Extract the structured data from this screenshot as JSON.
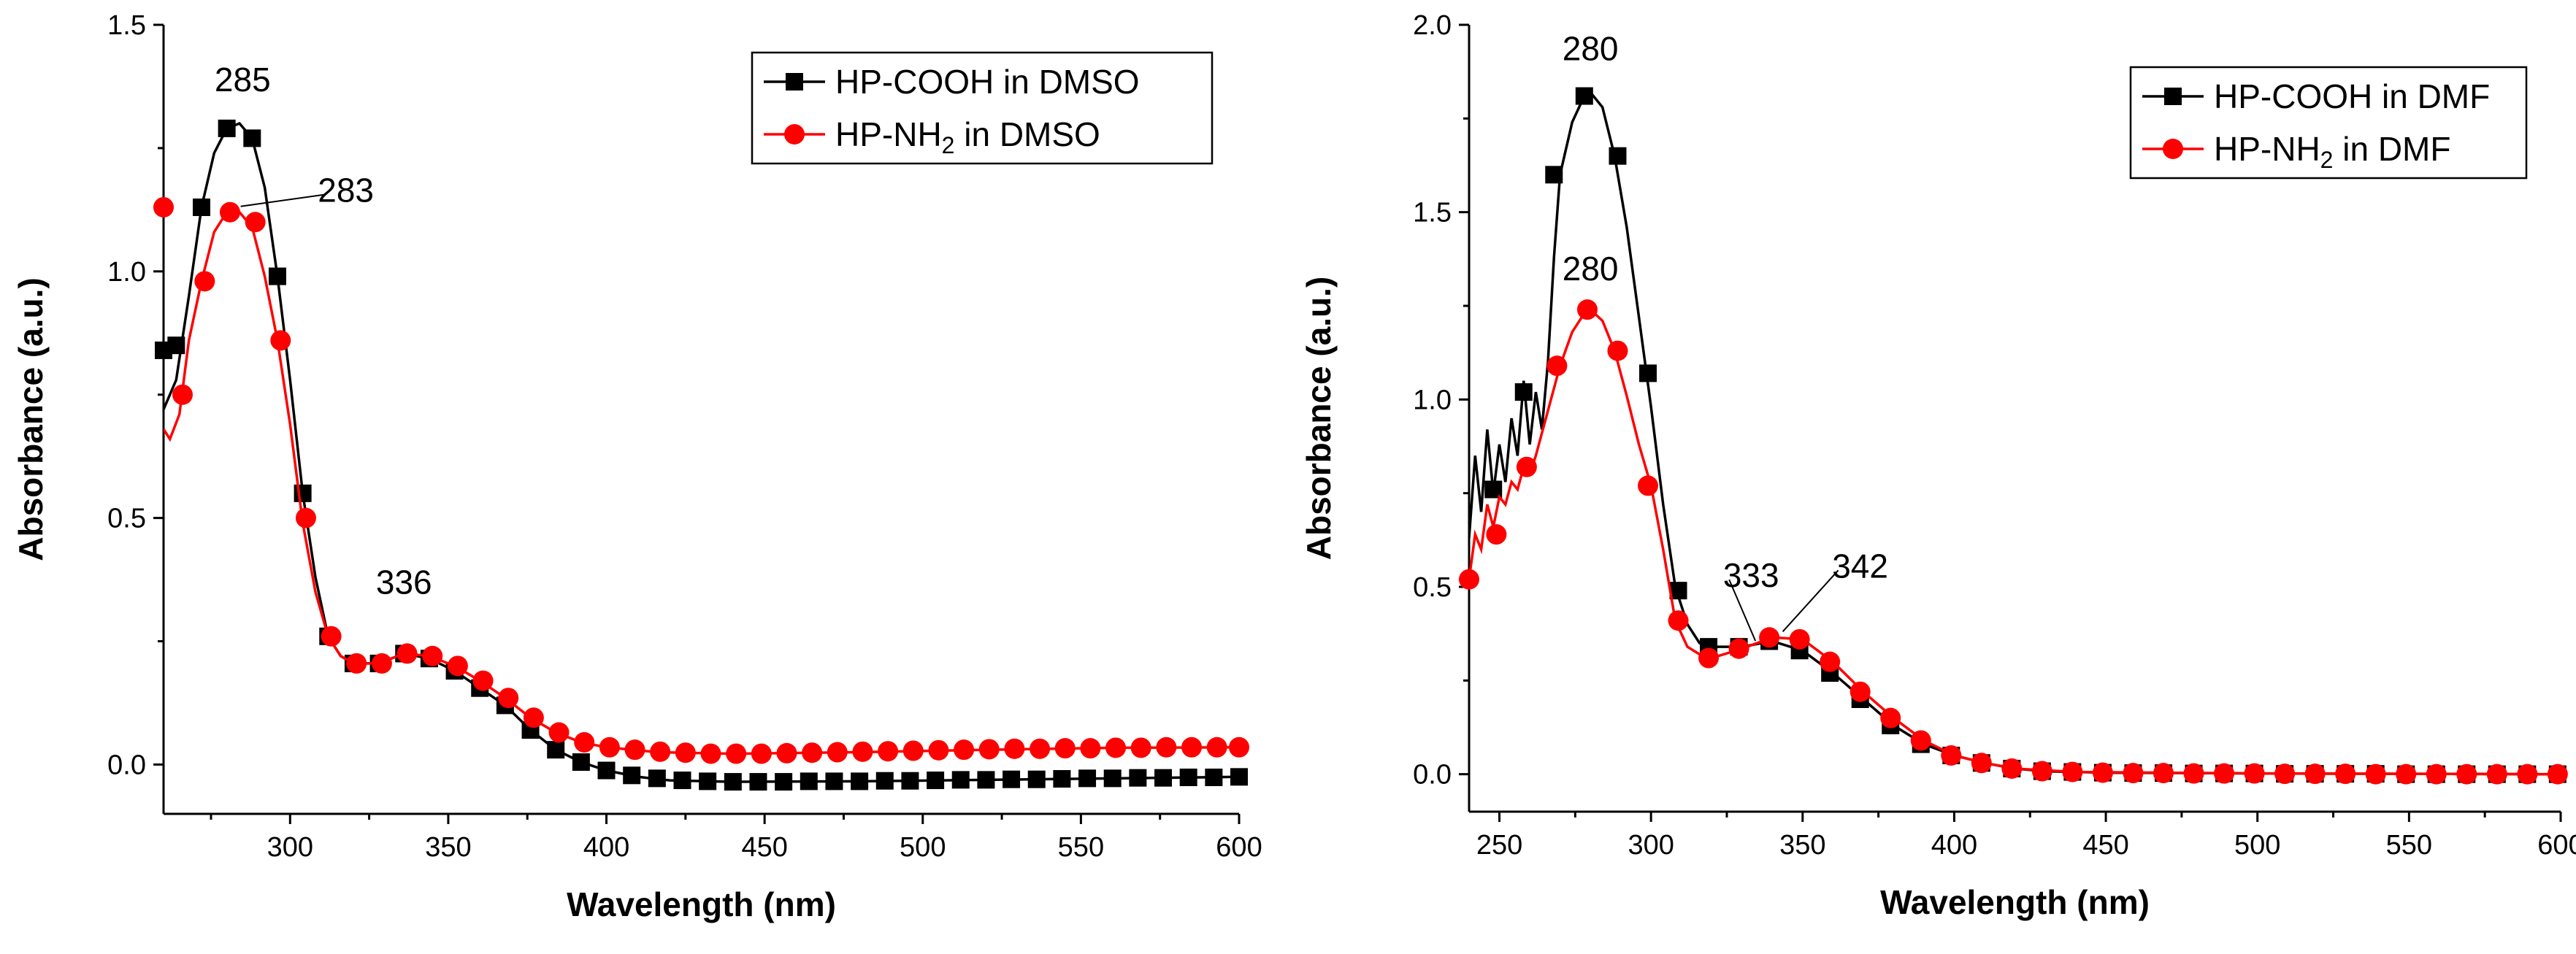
{
  "chart_data": [
    {
      "type": "line",
      "title": "",
      "xlabel": "Wavelength (nm)",
      "ylabel": "Absorbance (a.u.)",
      "xlim": [
        260,
        600
      ],
      "ylim": [
        -0.1,
        1.5
      ],
      "xticks": [
        300,
        350,
        400,
        450,
        500,
        550,
        600
      ],
      "yticks": [
        0.0,
        0.5,
        1.0,
        1.5
      ],
      "xtick_labels": [
        "300",
        "350",
        "400",
        "450",
        "500",
        "550",
        "600"
      ],
      "ytick_labels": [
        "0.0",
        "0.5",
        "1.0",
        "1.5"
      ],
      "legend_position": "top-right",
      "series": [
        {
          "name": "HP-COOH in DMSO",
          "name_main": "HP-COOH in DMSO",
          "name_sub": "",
          "name_tail": "",
          "color": "#000000",
          "marker": "square",
          "curve": [
            [
              260,
              0.72
            ],
            [
              264,
              0.78
            ],
            [
              268,
              0.95
            ],
            [
              272,
              1.13
            ],
            [
              276,
              1.24
            ],
            [
              280,
              1.29
            ],
            [
              284,
              1.3
            ],
            [
              288,
              1.27
            ],
            [
              292,
              1.17
            ],
            [
              296,
              0.99
            ],
            [
              300,
              0.78
            ],
            [
              304,
              0.55
            ],
            [
              308,
              0.38
            ],
            [
              312,
              0.26
            ],
            [
              316,
              0.22
            ],
            [
              320,
              0.205
            ],
            [
              328,
              0.205
            ],
            [
              336,
              0.225
            ],
            [
              344,
              0.215
            ],
            [
              352,
              0.19
            ],
            [
              360,
              0.155
            ],
            [
              368,
              0.12
            ],
            [
              376,
              0.07
            ],
            [
              384,
              0.03
            ],
            [
              392,
              0.005
            ],
            [
              400,
              -0.012
            ],
            [
              410,
              -0.025
            ],
            [
              420,
              -0.032
            ],
            [
              440,
              -0.035
            ],
            [
              480,
              -0.034
            ],
            [
              520,
              -0.031
            ],
            [
              560,
              -0.028
            ],
            [
              600,
              -0.025
            ]
          ],
          "x": [
            260,
            264,
            272,
            280,
            288,
            296,
            304,
            312,
            320,
            328,
            336,
            344,
            352,
            360,
            368,
            376,
            384,
            392,
            400,
            408,
            416,
            424,
            432,
            440,
            448,
            456,
            464,
            472,
            480,
            488,
            496,
            504,
            512,
            520,
            528,
            536,
            544,
            552,
            560,
            568,
            576,
            584,
            592,
            600
          ],
          "y": [
            0.84,
            0.85,
            1.13,
            1.29,
            1.27,
            0.99,
            0.55,
            0.26,
            0.205,
            0.205,
            0.225,
            0.215,
            0.19,
            0.155,
            0.12,
            0.07,
            0.03,
            0.005,
            -0.012,
            -0.022,
            -0.028,
            -0.032,
            -0.034,
            -0.035,
            -0.035,
            -0.035,
            -0.034,
            -0.034,
            -0.034,
            -0.033,
            -0.033,
            -0.032,
            -0.031,
            -0.031,
            -0.03,
            -0.03,
            -0.029,
            -0.028,
            -0.028,
            -0.027,
            -0.027,
            -0.026,
            -0.026,
            -0.025
          ]
        },
        {
          "name": "HP-NH2 in DMSO",
          "name_main": "HP-NH",
          "name_sub": "2",
          "name_tail": " in DMSO",
          "color": "#ff0000",
          "marker": "circle",
          "curve": [
            [
              260,
              0.68
            ],
            [
              262,
              0.66
            ],
            [
              265,
              0.71
            ],
            [
              268,
              0.86
            ],
            [
              272,
              0.98
            ],
            [
              276,
              1.08
            ],
            [
              280,
              1.12
            ],
            [
              284,
              1.12
            ],
            [
              288,
              1.09
            ],
            [
              292,
              0.99
            ],
            [
              296,
              0.86
            ],
            [
              300,
              0.69
            ],
            [
              304,
              0.49
            ],
            [
              308,
              0.35
            ],
            [
              312,
              0.26
            ],
            [
              316,
              0.22
            ],
            [
              320,
              0.205
            ],
            [
              328,
              0.205
            ],
            [
              336,
              0.225
            ],
            [
              344,
              0.22
            ],
            [
              352,
              0.2
            ],
            [
              360,
              0.17
            ],
            [
              368,
              0.135
            ],
            [
              376,
              0.095
            ],
            [
              384,
              0.065
            ],
            [
              392,
              0.045
            ],
            [
              400,
              0.035
            ],
            [
              416,
              0.025
            ],
            [
              440,
              0.022
            ],
            [
              480,
              0.025
            ],
            [
              520,
              0.03
            ],
            [
              560,
              0.034
            ],
            [
              600,
              0.035
            ]
          ],
          "x": [
            260,
            266,
            273,
            281,
            289,
            297,
            305,
            313,
            321,
            329,
            337,
            345,
            353,
            361,
            369,
            377,
            385,
            393,
            401,
            409,
            417,
            425,
            433,
            441,
            449,
            457,
            465,
            473,
            481,
            489,
            497,
            505,
            513,
            521,
            529,
            537,
            545,
            553,
            561,
            569,
            577,
            585,
            593,
            600
          ],
          "y": [
            1.13,
            0.75,
            0.98,
            1.12,
            1.1,
            0.86,
            0.5,
            0.26,
            0.205,
            0.205,
            0.225,
            0.22,
            0.2,
            0.17,
            0.135,
            0.095,
            0.065,
            0.045,
            0.035,
            0.03,
            0.026,
            0.024,
            0.022,
            0.022,
            0.022,
            0.023,
            0.024,
            0.025,
            0.026,
            0.027,
            0.028,
            0.029,
            0.03,
            0.031,
            0.032,
            0.032,
            0.033,
            0.033,
            0.034,
            0.034,
            0.035,
            0.035,
            0.035,
            0.035
          ]
        }
      ],
      "annotations": [
        {
          "text": "285",
          "x": 285,
          "y": 1.3
        },
        {
          "text": "283",
          "x": 283,
          "y": 1.12,
          "leader": true
        },
        {
          "text": "336",
          "x": 336,
          "y": 0.225
        }
      ]
    },
    {
      "type": "line",
      "title": "",
      "xlabel": "Wavelength (nm)",
      "ylabel": "Absorbance (a.u.)",
      "xlim": [
        240,
        600
      ],
      "ylim": [
        -0.1,
        2.0
      ],
      "xticks": [
        250,
        300,
        350,
        400,
        450,
        500,
        550,
        600
      ],
      "yticks": [
        0.0,
        0.5,
        1.0,
        1.5,
        2.0
      ],
      "xtick_labels": [
        "250",
        "300",
        "350",
        "400",
        "450",
        "500",
        "550",
        "600"
      ],
      "ytick_labels": [
        "0.0",
        "0.5",
        "1.0",
        "1.5",
        "2.0"
      ],
      "legend_position": "top-right",
      "series": [
        {
          "name": "HP-COOH in DMF",
          "name_main": "HP-COOH in DMF",
          "name_sub": "",
          "name_tail": "",
          "color": "#000000",
          "marker": "square",
          "curve": [
            [
              240,
              0.63
            ],
            [
              242,
              0.85
            ],
            [
              244,
              0.7
            ],
            [
              246,
              0.92
            ],
            [
              248,
              0.75
            ],
            [
              250,
              0.88
            ],
            [
              252,
              0.78
            ],
            [
              254,
              0.95
            ],
            [
              256,
              0.85
            ],
            [
              258,
              1.05
            ],
            [
              260,
              0.88
            ],
            [
              262,
              1.02
            ],
            [
              264,
              0.92
            ],
            [
              266,
              1.1
            ],
            [
              268,
              1.38
            ],
            [
              270,
              1.6
            ],
            [
              274,
              1.74
            ],
            [
              278,
              1.81
            ],
            [
              280,
              1.82
            ],
            [
              284,
              1.78
            ],
            [
              288,
              1.65
            ],
            [
              292,
              1.46
            ],
            [
              296,
              1.22
            ],
            [
              300,
              0.98
            ],
            [
              304,
              0.72
            ],
            [
              308,
              0.5
            ],
            [
              312,
              0.4
            ],
            [
              316,
              0.35
            ],
            [
              320,
              0.34
            ],
            [
              330,
              0.34
            ],
            [
              340,
              0.355
            ],
            [
              350,
              0.33
            ],
            [
              360,
              0.27
            ],
            [
              370,
              0.2
            ],
            [
              380,
              0.13
            ],
            [
              390,
              0.08
            ],
            [
              400,
              0.05
            ],
            [
              410,
              0.03
            ],
            [
              420,
              0.015
            ],
            [
              430,
              0.008
            ],
            [
              450,
              0.004
            ],
            [
              500,
              0.002
            ],
            [
              600,
              0.0
            ]
          ],
          "x": [
            248,
            258,
            268,
            278,
            289,
            299,
            309,
            319,
            329,
            339,
            349,
            359,
            369,
            379,
            389,
            399,
            409,
            419,
            429,
            439,
            449,
            459,
            469,
            479,
            489,
            499,
            509,
            519,
            529,
            539,
            549,
            559,
            569,
            579,
            589,
            599
          ],
          "y": [
            0.76,
            1.02,
            1.6,
            1.81,
            1.65,
            1.07,
            0.49,
            0.34,
            0.34,
            0.355,
            0.33,
            0.27,
            0.2,
            0.13,
            0.08,
            0.05,
            0.03,
            0.015,
            0.008,
            0.006,
            0.004,
            0.003,
            0.003,
            0.002,
            0.002,
            0.002,
            0.001,
            0.001,
            0.001,
            0.001,
            0.0,
            0.0,
            0.0,
            0.0,
            0.0,
            0.0
          ]
        },
        {
          "name": "HP-NH2 in DMF",
          "name_main": "HP-NH",
          "name_sub": "2",
          "name_tail": " in DMF",
          "color": "#ff0000",
          "marker": "circle",
          "curve": [
            [
              240,
              0.52
            ],
            [
              242,
              0.64
            ],
            [
              244,
              0.6
            ],
            [
              246,
              0.72
            ],
            [
              248,
              0.66
            ],
            [
              250,
              0.74
            ],
            [
              252,
              0.72
            ],
            [
              254,
              0.78
            ],
            [
              256,
              0.76
            ],
            [
              258,
              0.82
            ],
            [
              260,
              0.8
            ],
            [
              262,
              0.85
            ],
            [
              266,
              0.97
            ],
            [
              270,
              1.09
            ],
            [
              274,
              1.18
            ],
            [
              278,
              1.23
            ],
            [
              280,
              1.24
            ],
            [
              284,
              1.21
            ],
            [
              288,
              1.13
            ],
            [
              292,
              1.01
            ],
            [
              296,
              0.88
            ],
            [
              300,
              0.77
            ],
            [
              304,
              0.6
            ],
            [
              308,
              0.41
            ],
            [
              312,
              0.34
            ],
            [
              316,
              0.32
            ],
            [
              320,
              0.31
            ],
            [
              330,
              0.335
            ],
            [
              340,
              0.365
            ],
            [
              350,
              0.36
            ],
            [
              360,
              0.3
            ],
            [
              370,
              0.22
            ],
            [
              380,
              0.15
            ],
            [
              390,
              0.09
            ],
            [
              400,
              0.05
            ],
            [
              410,
              0.03
            ],
            [
              420,
              0.015
            ],
            [
              440,
              0.006
            ],
            [
              500,
              0.002
            ],
            [
              600,
              0.0
            ]
          ],
          "x": [
            240,
            249,
            259,
            269,
            279,
            289,
            299,
            309,
            319,
            329,
            339,
            349,
            359,
            369,
            379,
            389,
            399,
            409,
            419,
            429,
            439,
            449,
            459,
            469,
            479,
            489,
            499,
            509,
            519,
            529,
            539,
            549,
            559,
            569,
            579,
            589,
            599
          ],
          "y": [
            0.52,
            0.64,
            0.82,
            1.09,
            1.24,
            1.13,
            0.77,
            0.41,
            0.31,
            0.335,
            0.365,
            0.36,
            0.3,
            0.22,
            0.15,
            0.09,
            0.05,
            0.03,
            0.015,
            0.008,
            0.006,
            0.004,
            0.003,
            0.003,
            0.002,
            0.002,
            0.002,
            0.001,
            0.001,
            0.001,
            0.0,
            0.0,
            0.0,
            0.0,
            0.0,
            0.0,
            0.0
          ]
        }
      ],
      "annotations": [
        {
          "text": "280",
          "x": 280,
          "y": 1.82
        },
        {
          "text": "280",
          "x": 280,
          "y": 1.24
        },
        {
          "text": "333",
          "x": 333,
          "y": 0.34,
          "leader": true
        },
        {
          "text": "342",
          "x": 342,
          "y": 0.365,
          "leader": true
        }
      ]
    }
  ]
}
